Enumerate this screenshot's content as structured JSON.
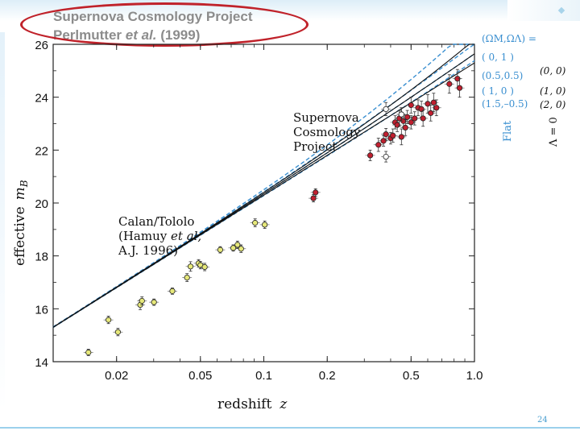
{
  "slide": {
    "title_line1": "Supernova Cosmology Project",
    "title_line2_prefix": "Perlmutter ",
    "title_line2_italic": "et al.",
    "title_line2_suffix": " (1999)",
    "page_number": "24",
    "accent_color": "#4a9fd0",
    "oval_color": "#c0222a"
  },
  "chart_data": {
    "type": "scatter",
    "title": "",
    "xlabel_text": "redshift",
    "xlabel_var": "z",
    "ylabel_text": "effective",
    "ylabel_var": "m",
    "ylabel_sub": "B",
    "xscale": "log",
    "xlim": [
      0.01,
      1.0
    ],
    "ylim": [
      14,
      26
    ],
    "x_ticks": [
      {
        "value": 0.02,
        "label": "0.02"
      },
      {
        "value": 0.05,
        "label": "0.05"
      },
      {
        "value": 0.1,
        "label": "0.1"
      },
      {
        "value": 0.2,
        "label": "0.2"
      },
      {
        "value": 0.5,
        "label": "0.5"
      },
      {
        "value": 1.0,
        "label": "1.0"
      }
    ],
    "y_ticks": [
      {
        "value": 14,
        "label": "14"
      },
      {
        "value": 16,
        "label": "16"
      },
      {
        "value": 18,
        "label": "18"
      },
      {
        "value": 20,
        "label": "20"
      },
      {
        "value": 22,
        "label": "22"
      },
      {
        "value": 24,
        "label": "24"
      },
      {
        "value": 26,
        "label": "26"
      }
    ],
    "annotations": {
      "scp_lines": [
        "Supernova",
        "Cosmology",
        "Project"
      ],
      "calan_line1": "Calan/Tololo",
      "calan_line2_prefix": "(Hamuy ",
      "calan_line2_italic": "et al,",
      "calan_line3": "A.J. 1996)"
    },
    "legend": {
      "header": "(ΩM,ΩΛ) =",
      "flat_label": "Flat",
      "lambda_zero_label": "Λ = 0",
      "flat_entries": [
        "( 0,   1 )",
        "(0.5,0.5)",
        "( 1,    0 )",
        "(1.5,–0.5)"
      ],
      "lambda_zero_entries": [
        "(0, 0)",
        "(1, 0)",
        "(2, 0)"
      ]
    },
    "series": [
      {
        "name": "Calan/Tololo",
        "marker": "circle",
        "fill": "#e6e87a",
        "points": [
          {
            "z": 0.0147,
            "m": 14.35,
            "err": 0.12
          },
          {
            "z": 0.0183,
            "m": 15.58,
            "err": 0.14
          },
          {
            "z": 0.0203,
            "m": 15.12,
            "err": 0.14
          },
          {
            "z": 0.0259,
            "m": 16.15,
            "err": 0.18
          },
          {
            "z": 0.0264,
            "m": 16.3,
            "err": 0.15
          },
          {
            "z": 0.0301,
            "m": 16.25,
            "err": 0.12
          },
          {
            "z": 0.0368,
            "m": 16.67,
            "err": 0.12
          },
          {
            "z": 0.0432,
            "m": 17.18,
            "err": 0.15
          },
          {
            "z": 0.0449,
            "m": 17.6,
            "err": 0.18
          },
          {
            "z": 0.049,
            "m": 17.72,
            "err": 0.14
          },
          {
            "z": 0.05,
            "m": 17.65,
            "err": 0.14
          },
          {
            "z": 0.0524,
            "m": 17.58,
            "err": 0.14
          },
          {
            "z": 0.0621,
            "m": 18.23,
            "err": 0.12
          },
          {
            "z": 0.0716,
            "m": 18.3,
            "err": 0.12
          },
          {
            "z": 0.075,
            "m": 18.42,
            "err": 0.14
          },
          {
            "z": 0.078,
            "m": 18.27,
            "err": 0.14
          },
          {
            "z": 0.0909,
            "m": 19.25,
            "err": 0.15
          },
          {
            "z": 0.101,
            "m": 19.18,
            "err": 0.14
          }
        ]
      },
      {
        "name": "Supernova Cosmology Project",
        "marker": "circle",
        "fill": "#c01f2f",
        "points": [
          {
            "z": 0.172,
            "m": 20.18,
            "err": 0.14
          },
          {
            "z": 0.176,
            "m": 20.4,
            "err": 0.14
          },
          {
            "z": 0.32,
            "m": 21.8,
            "err": 0.2
          },
          {
            "z": 0.35,
            "m": 22.2,
            "err": 0.25
          },
          {
            "z": 0.37,
            "m": 22.35,
            "err": 0.2
          },
          {
            "z": 0.38,
            "m": 22.6,
            "err": 0.22
          },
          {
            "z": 0.4,
            "m": 22.45,
            "err": 0.22
          },
          {
            "z": 0.41,
            "m": 22.55,
            "err": 0.25
          },
          {
            "z": 0.42,
            "m": 23.05,
            "err": 0.25
          },
          {
            "z": 0.43,
            "m": 22.95,
            "err": 0.25
          },
          {
            "z": 0.44,
            "m": 23.2,
            "err": 0.3
          },
          {
            "z": 0.45,
            "m": 22.5,
            "err": 0.3
          },
          {
            "z": 0.45,
            "m": 23.35,
            "err": 0.25
          },
          {
            "z": 0.46,
            "m": 23.1,
            "err": 0.22
          },
          {
            "z": 0.47,
            "m": 22.85,
            "err": 0.3
          },
          {
            "z": 0.48,
            "m": 23.25,
            "err": 0.25
          },
          {
            "z": 0.5,
            "m": 23.7,
            "err": 0.3
          },
          {
            "z": 0.5,
            "m": 23.05,
            "err": 0.25
          },
          {
            "z": 0.52,
            "m": 23.2,
            "err": 0.25
          },
          {
            "z": 0.54,
            "m": 23.6,
            "err": 0.3
          },
          {
            "z": 0.56,
            "m": 23.55,
            "err": 0.3
          },
          {
            "z": 0.57,
            "m": 23.2,
            "err": 0.3
          },
          {
            "z": 0.6,
            "m": 23.75,
            "err": 0.35
          },
          {
            "z": 0.62,
            "m": 23.4,
            "err": 0.3
          },
          {
            "z": 0.64,
            "m": 23.8,
            "err": 0.35
          },
          {
            "z": 0.66,
            "m": 23.6,
            "err": 0.3
          },
          {
            "z": 0.76,
            "m": 24.5,
            "err": 0.35
          },
          {
            "z": 0.83,
            "m": 24.7,
            "err": 0.35
          },
          {
            "z": 0.85,
            "m": 24.35,
            "err": 0.35
          }
        ]
      },
      {
        "name": "open points",
        "marker": "circle",
        "fill": "#ffffff",
        "points": [
          {
            "z": 0.38,
            "m": 23.55,
            "err": 0.25
          },
          {
            "z": 0.38,
            "m": 21.75,
            "err": 0.2
          },
          {
            "z": 0.45,
            "m": 23.35,
            "err": 0.25
          }
        ]
      }
    ],
    "model_curves": [
      {
        "label": "( 0,   1 )",
        "omega_m": 0.0,
        "omega_l": 1.0,
        "style": "dashed",
        "color": "#3a8fd0"
      },
      {
        "label": "(0.5,0.5)",
        "omega_m": 0.5,
        "omega_l": 0.5,
        "style": "dashed",
        "color": "#3a8fd0"
      },
      {
        "label": "( 1,    0 )",
        "omega_m": 1.0,
        "omega_l": 0.0,
        "style": "dashed",
        "color": "#3a8fd0"
      },
      {
        "label": "(1.5,–0.5)",
        "omega_m": 1.5,
        "omega_l": -0.5,
        "style": "dashed",
        "color": "#3a8fd0"
      },
      {
        "label": "(0, 0)",
        "omega_m": 0.0,
        "omega_l": 0.0,
        "style": "solid",
        "color": "#111111"
      },
      {
        "label": "(1, 0)",
        "omega_m": 1.0,
        "omega_l": 0.0,
        "style": "solid",
        "color": "#111111"
      },
      {
        "label": "(2, 0)",
        "omega_m": 2.0,
        "omega_l": 0.0,
        "style": "solid",
        "color": "#111111"
      }
    ]
  }
}
